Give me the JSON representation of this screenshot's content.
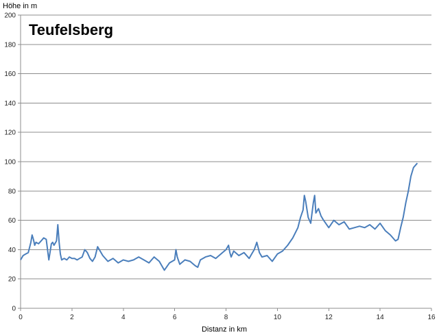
{
  "chart_data": {
    "type": "line",
    "title": "Teufelsberg",
    "xlabel": "Distanz in km",
    "ylabel": "Höhe in m",
    "xlim": [
      0,
      16
    ],
    "ylim": [
      0,
      200
    ],
    "xticks": [
      0,
      2,
      4,
      6,
      8,
      10,
      12,
      14,
      16
    ],
    "yticks": [
      0,
      20,
      40,
      60,
      80,
      100,
      120,
      140,
      160,
      180,
      200
    ],
    "grid": "horizontal",
    "legend": "none",
    "line_color": "#4a7ebb",
    "series": [
      {
        "x": [
          0,
          0.1,
          0.2,
          0.3,
          0.4,
          0.45,
          0.5,
          0.55,
          0.6,
          0.7,
          0.8,
          0.9,
          1.0,
          1.05,
          1.1,
          1.2,
          1.25,
          1.3,
          1.4,
          1.45,
          1.5,
          1.55,
          1.6,
          1.7,
          1.8,
          1.9,
          2.0,
          2.1,
          2.2,
          2.3,
          2.4,
          2.5,
          2.6,
          2.7,
          2.8,
          2.9,
          3.0,
          3.2,
          3.4,
          3.6,
          3.8,
          4.0,
          4.2,
          4.4,
          4.6,
          4.8,
          5.0,
          5.2,
          5.4,
          5.6,
          5.8,
          6.0,
          6.05,
          6.1,
          6.2,
          6.4,
          6.6,
          6.8,
          6.9,
          7.0,
          7.2,
          7.4,
          7.6,
          7.8,
          8.0,
          8.1,
          8.15,
          8.2,
          8.3,
          8.5,
          8.7,
          8.9,
          9.0,
          9.1,
          9.2,
          9.3,
          9.4,
          9.6,
          9.8,
          10.0,
          10.2,
          10.4,
          10.6,
          10.8,
          10.9,
          11.0,
          11.05,
          11.1,
          11.2,
          11.3,
          11.4,
          11.45,
          11.5,
          11.6,
          11.7,
          11.8,
          12.0,
          12.2,
          12.4,
          12.6,
          12.8,
          13.0,
          13.2,
          13.4,
          13.6,
          13.8,
          14.0,
          14.2,
          14.4,
          14.6,
          14.7,
          14.8,
          14.9,
          15.0,
          15.1,
          15.2,
          15.3,
          15.4,
          15.45
        ],
        "y": [
          33,
          36,
          37,
          38,
          45,
          50,
          47,
          43,
          45,
          44,
          46,
          48,
          47,
          40,
          33,
          44,
          45,
          43,
          46,
          57,
          45,
          37,
          33,
          34,
          33,
          35,
          34,
          34,
          33,
          34,
          35,
          40,
          38,
          34,
          32,
          35,
          42,
          36,
          32,
          34,
          31,
          33,
          32,
          33,
          35,
          33,
          31,
          35,
          32,
          26,
          31,
          33,
          40,
          35,
          30,
          33,
          32,
          29,
          28,
          33,
          35,
          36,
          34,
          37,
          40,
          43,
          38,
          35,
          39,
          36,
          38,
          34,
          37,
          40,
          45,
          38,
          35,
          36,
          32,
          37,
          39,
          43,
          48,
          55,
          62,
          67,
          77,
          73,
          62,
          58,
          72,
          77,
          65,
          68,
          63,
          60,
          55,
          60,
          57,
          59,
          54,
          55,
          56,
          55,
          57,
          54,
          58,
          53,
          50,
          46,
          47,
          55,
          62,
          72,
          80,
          90,
          96,
          98,
          99
        ]
      }
    ]
  }
}
